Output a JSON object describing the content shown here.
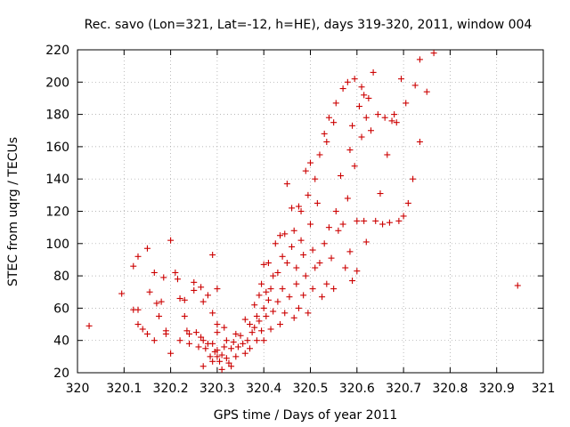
{
  "chart_data": {
    "type": "scatter",
    "title": "Rec. savo (Lon=321, Lat=-12, h=HE), days 319-320, 2011, window 004",
    "xlabel": "GPS time / Days of year 2011",
    "ylabel": "STEC from uqrg / TECUs",
    "xlim": [
      320,
      321
    ],
    "ylim": [
      20,
      220
    ],
    "x_ticks": [
      "320",
      "320.1",
      "320.2",
      "320.3",
      "320.4",
      "320.5",
      "320.6",
      "320.7",
      "320.8",
      "320.9",
      "321"
    ],
    "y_ticks": [
      "20",
      "40",
      "60",
      "80",
      "100",
      "120",
      "140",
      "160",
      "180",
      "200",
      "220"
    ],
    "grid": true,
    "marker": "plus",
    "color": "#cc0000",
    "points": [
      [
        320.025,
        49
      ],
      [
        320.095,
        69
      ],
      [
        320.12,
        86
      ],
      [
        320.13,
        92
      ],
      [
        320.15,
        97
      ],
      [
        320.155,
        70
      ],
      [
        320.165,
        82
      ],
      [
        320.17,
        63
      ],
      [
        320.18,
        64
      ],
      [
        320.12,
        59
      ],
      [
        320.13,
        59
      ],
      [
        320.13,
        50
      ],
      [
        320.14,
        47
      ],
      [
        320.15,
        44
      ],
      [
        320.165,
        40
      ],
      [
        320.175,
        55
      ],
      [
        320.185,
        79
      ],
      [
        320.19,
        46
      ],
      [
        320.19,
        44
      ],
      [
        320.2,
        102
      ],
      [
        320.2,
        32
      ],
      [
        320.21,
        82
      ],
      [
        320.215,
        78
      ],
      [
        320.22,
        66
      ],
      [
        320.22,
        40
      ],
      [
        320.23,
        65
      ],
      [
        320.23,
        55
      ],
      [
        320.235,
        46
      ],
      [
        320.24,
        44
      ],
      [
        320.24,
        38
      ],
      [
        320.25,
        76
      ],
      [
        320.25,
        71
      ],
      [
        320.255,
        45
      ],
      [
        320.26,
        36
      ],
      [
        320.265,
        73
      ],
      [
        320.265,
        42
      ],
      [
        320.27,
        64
      ],
      [
        320.27,
        40
      ],
      [
        320.27,
        24
      ],
      [
        320.275,
        35
      ],
      [
        320.28,
        68
      ],
      [
        320.28,
        38
      ],
      [
        320.285,
        30
      ],
      [
        320.29,
        93
      ],
      [
        320.29,
        57
      ],
      [
        320.29,
        38
      ],
      [
        320.29,
        27
      ],
      [
        320.295,
        33
      ],
      [
        320.3,
        72
      ],
      [
        320.3,
        50
      ],
      [
        320.3,
        45
      ],
      [
        320.3,
        34
      ],
      [
        320.3,
        30
      ],
      [
        320.305,
        27
      ],
      [
        320.31,
        22
      ],
      [
        320.31,
        31
      ],
      [
        320.315,
        36
      ],
      [
        320.315,
        48
      ],
      [
        320.32,
        40
      ],
      [
        320.32,
        29
      ],
      [
        320.325,
        26
      ],
      [
        320.33,
        35
      ],
      [
        320.33,
        24
      ],
      [
        320.335,
        39
      ],
      [
        320.34,
        44
      ],
      [
        320.34,
        30
      ],
      [
        320.345,
        36
      ],
      [
        320.35,
        43
      ],
      [
        320.355,
        38
      ],
      [
        320.36,
        53
      ],
      [
        320.36,
        32
      ],
      [
        320.365,
        40
      ],
      [
        320.37,
        50
      ],
      [
        320.37,
        35
      ],
      [
        320.375,
        45
      ],
      [
        320.38,
        62
      ],
      [
        320.38,
        48
      ],
      [
        320.385,
        55
      ],
      [
        320.385,
        40
      ],
      [
        320.39,
        68
      ],
      [
        320.39,
        52
      ],
      [
        320.395,
        75
      ],
      [
        320.395,
        46
      ],
      [
        320.4,
        87
      ],
      [
        320.4,
        60
      ],
      [
        320.4,
        40
      ],
      [
        320.405,
        70
      ],
      [
        320.405,
        55
      ],
      [
        320.41,
        88
      ],
      [
        320.41,
        65
      ],
      [
        320.415,
        72
      ],
      [
        320.415,
        47
      ],
      [
        320.42,
        80
      ],
      [
        320.42,
        58
      ],
      [
        320.425,
        100
      ],
      [
        320.43,
        82
      ],
      [
        320.43,
        64
      ],
      [
        320.435,
        105
      ],
      [
        320.435,
        50
      ],
      [
        320.44,
        92
      ],
      [
        320.44,
        72
      ],
      [
        320.445,
        106
      ],
      [
        320.445,
        57
      ],
      [
        320.45,
        137
      ],
      [
        320.45,
        88
      ],
      [
        320.455,
        67
      ],
      [
        320.46,
        122
      ],
      [
        320.46,
        98
      ],
      [
        320.465,
        108
      ],
      [
        320.465,
        54
      ],
      [
        320.47,
        85
      ],
      [
        320.47,
        75
      ],
      [
        320.475,
        123
      ],
      [
        320.475,
        60
      ],
      [
        320.48,
        120
      ],
      [
        320.48,
        102
      ],
      [
        320.485,
        93
      ],
      [
        320.485,
        68
      ],
      [
        320.49,
        145
      ],
      [
        320.49,
        80
      ],
      [
        320.495,
        130
      ],
      [
        320.495,
        57
      ],
      [
        320.5,
        150
      ],
      [
        320.5,
        112
      ],
      [
        320.505,
        96
      ],
      [
        320.505,
        72
      ],
      [
        320.51,
        140
      ],
      [
        320.51,
        85
      ],
      [
        320.515,
        125
      ],
      [
        320.52,
        155
      ],
      [
        320.52,
        88
      ],
      [
        320.525,
        67
      ],
      [
        320.53,
        168
      ],
      [
        320.53,
        100
      ],
      [
        320.535,
        163
      ],
      [
        320.535,
        75
      ],
      [
        320.54,
        178
      ],
      [
        320.54,
        110
      ],
      [
        320.545,
        91
      ],
      [
        320.55,
        175
      ],
      [
        320.55,
        72
      ],
      [
        320.555,
        187
      ],
      [
        320.555,
        120
      ],
      [
        320.56,
        108
      ],
      [
        320.565,
        142
      ],
      [
        320.57,
        196
      ],
      [
        320.57,
        112
      ],
      [
        320.575,
        85
      ],
      [
        320.58,
        200
      ],
      [
        320.58,
        128
      ],
      [
        320.585,
        158
      ],
      [
        320.585,
        95
      ],
      [
        320.59,
        173
      ],
      [
        320.59,
        77
      ],
      [
        320.595,
        202
      ],
      [
        320.595,
        148
      ],
      [
        320.6,
        114
      ],
      [
        320.6,
        83
      ],
      [
        320.605,
        185
      ],
      [
        320.61,
        197
      ],
      [
        320.61,
        166
      ],
      [
        320.615,
        192
      ],
      [
        320.615,
        114
      ],
      [
        320.62,
        178
      ],
      [
        320.62,
        101
      ],
      [
        320.625,
        190
      ],
      [
        320.63,
        170
      ],
      [
        320.635,
        206
      ],
      [
        320.64,
        114
      ],
      [
        320.645,
        180
      ],
      [
        320.65,
        131
      ],
      [
        320.655,
        112
      ],
      [
        320.66,
        178
      ],
      [
        320.665,
        155
      ],
      [
        320.67,
        113
      ],
      [
        320.675,
        176
      ],
      [
        320.68,
        180
      ],
      [
        320.685,
        175
      ],
      [
        320.69,
        114
      ],
      [
        320.695,
        202
      ],
      [
        320.7,
        117
      ],
      [
        320.705,
        187
      ],
      [
        320.71,
        125
      ],
      [
        320.72,
        140
      ],
      [
        320.725,
        198
      ],
      [
        320.735,
        214
      ],
      [
        320.735,
        163
      ],
      [
        320.75,
        194
      ],
      [
        320.765,
        218
      ],
      [
        320.945,
        74
      ]
    ]
  }
}
